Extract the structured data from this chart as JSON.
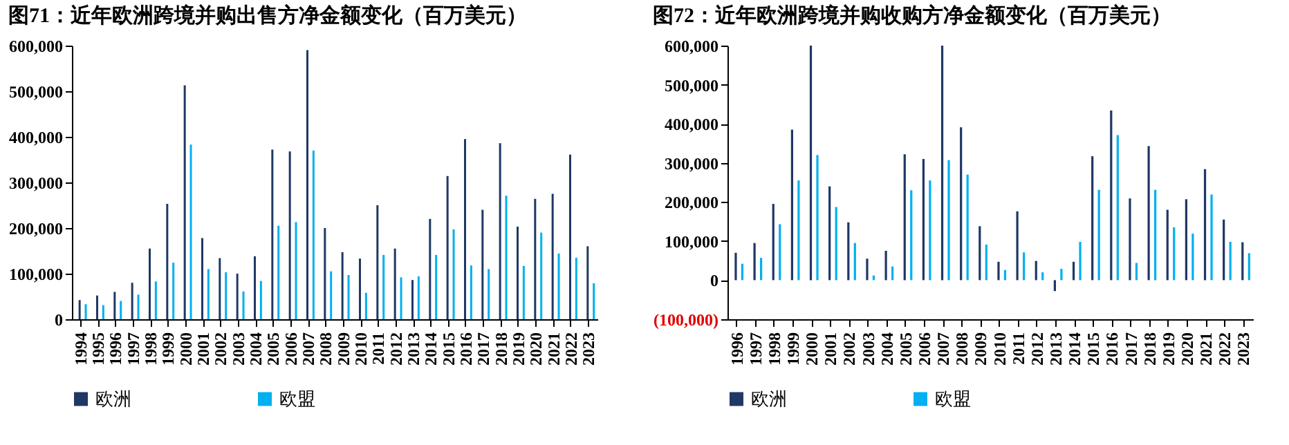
{
  "chart_data": [
    {
      "type": "bar",
      "title": "图71：近年欧洲跨境并购出售方净金额变化（百万美元）",
      "categories": [
        "1994",
        "1995",
        "1996",
        "1997",
        "1998",
        "1999",
        "2000",
        "2001",
        "2002",
        "2003",
        "2004",
        "2005",
        "2006",
        "2007",
        "2008",
        "2009",
        "2010",
        "2011",
        "2012",
        "2013",
        "2014",
        "2015",
        "2016",
        "2017",
        "2018",
        "2019",
        "2020",
        "2021",
        "2022",
        "2023"
      ],
      "series": [
        {
          "name": "欧洲",
          "color": "#1f3864",
          "values": [
            42000,
            52000,
            60000,
            80000,
            155000,
            253000,
            513000,
            178000,
            134000,
            100000,
            138000,
            372000,
            368000,
            590000,
            200000,
            147000,
            133000,
            250000,
            155000,
            86000,
            220000,
            314000,
            395000,
            240000,
            386000,
            203000,
            264000,
            275000,
            361000,
            160000
          ]
        },
        {
          "name": "欧盟",
          "color": "#00b0f0",
          "values": [
            33000,
            31000,
            40000,
            54000,
            83000,
            124000,
            383000,
            110000,
            103000,
            61000,
            84000,
            205000,
            213000,
            370000,
            105000,
            97000,
            58000,
            141000,
            92000,
            94000,
            141000,
            197000,
            118000,
            110000,
            271000,
            117000,
            190000,
            144000,
            135000,
            79000
          ]
        }
      ],
      "ylim": [
        0,
        600000
      ],
      "yticks": [
        {
          "value": 0,
          "label": "0"
        },
        {
          "value": 100000,
          "label": "100,000"
        },
        {
          "value": 200000,
          "label": "200,000"
        },
        {
          "value": 300000,
          "label": "300,000"
        },
        {
          "value": 400000,
          "label": "400,000"
        },
        {
          "value": 500000,
          "label": "500,000"
        },
        {
          "value": 600000,
          "label": "600,000"
        }
      ],
      "grid": false,
      "legend": "bottom"
    },
    {
      "type": "bar",
      "title": "图72：近年欧洲跨境并购收购方净金额变化（百万美元）",
      "categories": [
        "1996",
        "1997",
        "1998",
        "1999",
        "2000",
        "2001",
        "2002",
        "2003",
        "2004",
        "2005",
        "2006",
        "2007",
        "2008",
        "2009",
        "2010",
        "2011",
        "2012",
        "2013",
        "2014",
        "2015",
        "2016",
        "2017",
        "2018",
        "2019",
        "2020",
        "2021",
        "2022",
        "2023"
      ],
      "series": [
        {
          "name": "欧洲",
          "color": "#1f3864",
          "values": [
            70000,
            95000,
            195000,
            385000,
            600000,
            240000,
            148000,
            55000,
            75000,
            322000,
            310000,
            600000,
            391000,
            138000,
            47000,
            176000,
            49000,
            -28000,
            47000,
            317000,
            434000,
            209000,
            343000,
            180000,
            207000,
            284000,
            155000,
            97000
          ]
        },
        {
          "name": "欧盟",
          "color": "#00b0f0",
          "values": [
            42000,
            57000,
            143000,
            255000,
            320000,
            187000,
            95000,
            12000,
            35000,
            230000,
            255000,
            307000,
            270000,
            91000,
            26000,
            71000,
            20000,
            29000,
            98000,
            231000,
            371000,
            44000,
            231000,
            135000,
            119000,
            219000,
            98000,
            69000
          ]
        }
      ],
      "ylim": [
        -100000,
        600000
      ],
      "yticks": [
        {
          "value": -100000,
          "label": "(100,000)"
        },
        {
          "value": 0,
          "label": "0"
        },
        {
          "value": 100000,
          "label": "100,000"
        },
        {
          "value": 200000,
          "label": "200,000"
        },
        {
          "value": 300000,
          "label": "300,000"
        },
        {
          "value": 400000,
          "label": "400,000"
        },
        {
          "value": 500000,
          "label": "500,000"
        },
        {
          "value": 600000,
          "label": "600,000"
        }
      ],
      "grid": false,
      "legend": "bottom"
    }
  ]
}
